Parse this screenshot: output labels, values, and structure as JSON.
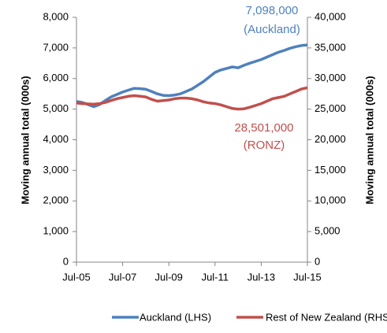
{
  "chart_data": {
    "type": "line",
    "categories": [
      "Jul-05",
      null,
      null,
      null,
      null,
      null,
      null,
      null,
      "Jul-07",
      null,
      null,
      null,
      null,
      null,
      null,
      null,
      "Jul-09",
      null,
      null,
      null,
      null,
      null,
      null,
      null,
      "Jul-11",
      null,
      null,
      null,
      null,
      null,
      null,
      null,
      "Jul-13",
      null,
      null,
      null,
      null,
      null,
      null,
      null,
      "Jul-15"
    ],
    "series": [
      {
        "name": "Auckland (LHS)",
        "color": "#4f81bd",
        "axis": "y",
        "values": [
          5250,
          5220,
          5150,
          5080,
          5150,
          5280,
          5400,
          5480,
          5560,
          5620,
          5680,
          5670,
          5650,
          5580,
          5500,
          5450,
          5440,
          5460,
          5500,
          5580,
          5660,
          5780,
          5900,
          6050,
          6200,
          6280,
          6330,
          6380,
          6350,
          6430,
          6500,
          6560,
          6620,
          6700,
          6780,
          6860,
          6920,
          6990,
          7040,
          7080,
          7098
        ]
      },
      {
        "name": "Rest of New Zealand (RHS)",
        "color": "#c0504d",
        "axis": "y2",
        "values": [
          26000,
          25900,
          25850,
          25800,
          25900,
          26100,
          26400,
          26700,
          26900,
          27100,
          27200,
          27100,
          27000,
          26600,
          26300,
          26400,
          26500,
          26700,
          26800,
          26800,
          26700,
          26500,
          26200,
          26000,
          25900,
          25700,
          25400,
          25100,
          25000,
          25050,
          25300,
          25600,
          25900,
          26300,
          26700,
          26900,
          27100,
          27500,
          27900,
          28300,
          28501
        ]
      }
    ],
    "ylabel": "Moving annual total (000s)",
    "y2label": "Moving annual total (000s)",
    "ylim": [
      0,
      8000
    ],
    "yticks": [
      0,
      {
        "value": 1000,
        "label": "1,000"
      },
      {
        "value": 2000,
        "label": "2,000"
      },
      {
        "value": 3000,
        "label": "3,000"
      },
      {
        "value": 4000,
        "label": "4,000"
      },
      {
        "value": 5000,
        "label": "5,000"
      },
      {
        "value": 6000,
        "label": "6,000"
      },
      {
        "value": 7000,
        "label": "7,000"
      },
      {
        "value": 8000,
        "label": "8,000"
      }
    ],
    "y2lim": [
      0,
      40000
    ],
    "y2ticks": [
      0,
      {
        "value": 5000,
        "label": "5,000"
      },
      {
        "value": 10000,
        "label": "10,000"
      },
      {
        "value": 15000,
        "label": "15,000"
      },
      {
        "value": 20000,
        "label": "20,000"
      },
      {
        "value": 25000,
        "label": "25,000"
      },
      {
        "value": 30000,
        "label": "30,000"
      },
      {
        "value": 35000,
        "label": "35,000"
      },
      {
        "value": 40000,
        "label": "40,000"
      }
    ],
    "annotations": [
      "7,098,000",
      "(Auckland)",
      "28,501,000",
      "(RONZ)"
    ],
    "legend": "bottom"
  }
}
